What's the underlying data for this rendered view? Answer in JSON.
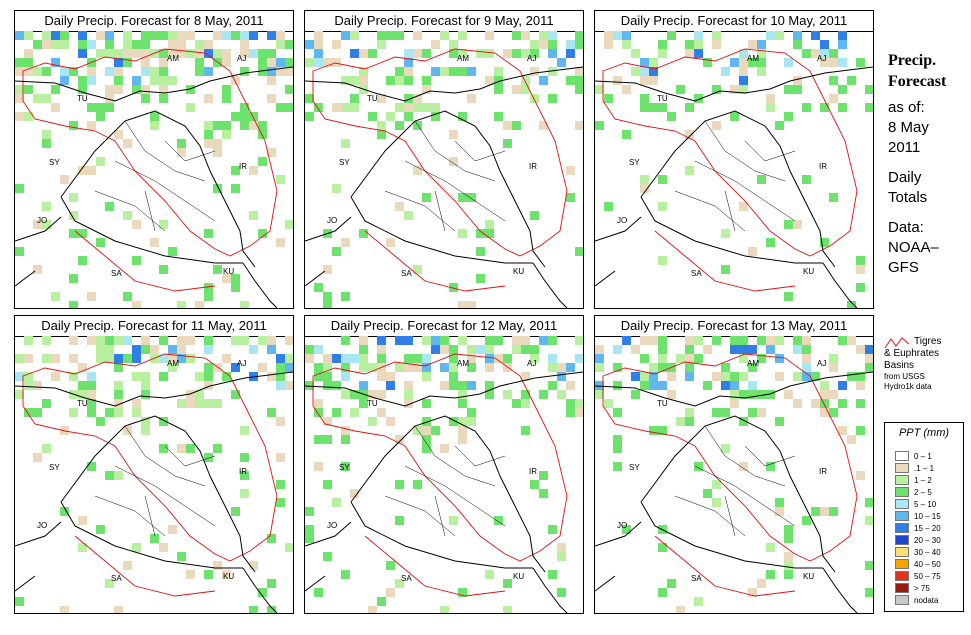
{
  "panels": [
    {
      "title": "Daily Precip. Forecast for  8 May, 2011",
      "seed": 3,
      "density": 0.55
    },
    {
      "title": "Daily Precip. Forecast for  9 May, 2011",
      "seed": 7,
      "density": 0.35
    },
    {
      "title": "Daily Precip. Forecast for  10 May, 2011",
      "seed": 11,
      "density": 0.3
    },
    {
      "title": "Daily Precip. Forecast for  11 May, 2011",
      "seed": 17,
      "density": 0.4
    },
    {
      "title": "Daily Precip. Forecast for  12 May, 2011",
      "seed": 23,
      "density": 0.45
    },
    {
      "title": "Daily Precip. Forecast for  13 May, 2011",
      "seed": 29,
      "density": 0.45
    }
  ],
  "region_labels": [
    "AM",
    "AJ",
    "TU",
    "SY",
    "IR",
    "JO",
    "SA",
    "KU"
  ],
  "sidebar": {
    "title_line1": "Precip.",
    "title_line2": "Forecast",
    "asof": "as of:",
    "date_line1": "8 May",
    "date_line2": "2011",
    "daily_line1": "Daily",
    "daily_line2": "Totals",
    "data_line1": "Data:",
    "data_line2": "NOAA–",
    "data_line3": "GFS"
  },
  "basin_note": {
    "line1": "Tigres",
    "line2": "& Euphrates",
    "line3": "Basins",
    "line4": "from USGS",
    "line5": "Hydro1k data",
    "line_color": "#e01010"
  },
  "legend": {
    "title": "PPT (mm)",
    "entries": [
      {
        "label": "0 – 1",
        "color": "#ffffff"
      },
      {
        "label": ".1 – 1",
        "color": "#ead9bd"
      },
      {
        "label": "1 – 2",
        "color": "#b8f0a0"
      },
      {
        "label": "2 – 5",
        "color": "#6de26d"
      },
      {
        "label": "5 – 10",
        "color": "#a8e6f2"
      },
      {
        "label": "10 – 15",
        "color": "#5fb7ee"
      },
      {
        "label": "15 – 20",
        "color": "#2f7fe6"
      },
      {
        "label": "20 – 30",
        "color": "#1f46d0"
      },
      {
        "label": "30 – 40",
        "color": "#f4e070"
      },
      {
        "label": "40 – 50",
        "color": "#f5a400"
      },
      {
        "label": "50 – 75",
        "color": "#e2331c"
      },
      {
        "label": "> 75",
        "color": "#9a1a10"
      },
      {
        "label": "nodata",
        "color": "#c8c8c8"
      }
    ]
  }
}
